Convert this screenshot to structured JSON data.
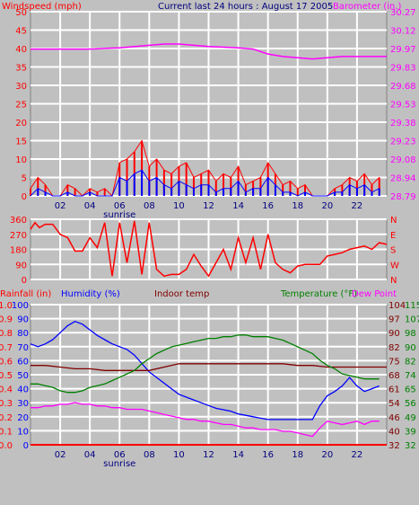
{
  "chart_data": [
    {
      "type": "line",
      "panel": "wind_baro",
      "title": "Current last 24 hours : August 17 2005",
      "left_axis_label": "Windspeed (mph)",
      "right_axis_label": "Barometer (in.)",
      "left_ticks": [
        0,
        5,
        10,
        15,
        20,
        25,
        30,
        35,
        40,
        45,
        50
      ],
      "ylim_left": [
        0,
        50
      ],
      "right_ticks": [
        "28.79",
        "28.94",
        "29.08",
        "29.23",
        "29.38",
        "29.53",
        "29.68",
        "29.83",
        "29.97",
        "30.12",
        "30.27"
      ],
      "ylim_right": [
        28.79,
        30.27
      ],
      "x_ticks": [
        "02",
        "04",
        "06",
        "08",
        "10",
        "12",
        "14",
        "16",
        "18",
        "20",
        "22"
      ],
      "x_annotation": "sunrise",
      "xlim": [
        0,
        24
      ],
      "colors": {
        "wind_gust": "#ff0000",
        "wind_avg": "#0000ff",
        "barometer": "#ff00ff",
        "left_axis": "#ff0000",
        "right_axis": "#ff00ff",
        "title": "#000080"
      },
      "series": [
        {
          "key": "barometer",
          "axis": "right",
          "x": [
            0,
            2,
            4,
            6,
            8,
            9,
            10,
            12,
            14,
            15,
            16,
            17,
            18,
            19,
            20,
            21,
            22,
            24
          ],
          "y": [
            29.97,
            29.97,
            29.97,
            29.98,
            30.0,
            30.01,
            30.01,
            29.99,
            29.98,
            29.97,
            29.93,
            29.91,
            29.9,
            29.89,
            29.9,
            29.91,
            29.91,
            29.91
          ]
        },
        {
          "key": "wind_gust",
          "axis": "left",
          "x": [
            0,
            0.5,
            1,
            1.5,
            2,
            2.5,
            3,
            3.5,
            4,
            4.5,
            5,
            5.5,
            6,
            6.5,
            7,
            7.5,
            8,
            8.5,
            9,
            9.5,
            10,
            10.5,
            11,
            11.5,
            12,
            12.5,
            13,
            13.5,
            14,
            14.5,
            15,
            15.5,
            16,
            16.5,
            17,
            17.5,
            18,
            18.5,
            19,
            19.5,
            20,
            20.5,
            21,
            21.5,
            22,
            22.5,
            23,
            23.5
          ],
          "y": [
            2,
            5,
            3,
            0,
            0,
            3,
            2,
            0,
            2,
            1,
            2,
            0,
            9,
            10,
            12,
            15,
            8,
            10,
            7,
            6,
            8,
            9,
            5,
            6,
            7,
            4,
            6,
            5,
            8,
            3,
            4,
            5,
            9,
            6,
            3,
            4,
            2,
            3,
            0,
            0,
            0,
            2,
            3,
            5,
            4,
            6,
            3,
            5
          ]
        },
        {
          "key": "wind_avg",
          "axis": "left",
          "x": [
            0,
            0.5,
            1,
            1.5,
            2,
            2.5,
            3,
            3.5,
            4,
            4.5,
            5,
            5.5,
            6,
            6.5,
            7,
            7.5,
            8,
            8.5,
            9,
            9.5,
            10,
            10.5,
            11,
            11.5,
            12,
            12.5,
            13,
            13.5,
            14,
            14.5,
            15,
            15.5,
            16,
            16.5,
            17,
            17.5,
            18,
            18.5,
            19,
            19.5,
            20,
            20.5,
            21,
            21.5,
            22,
            22.5,
            23,
            23.5
          ],
          "y": [
            0,
            2,
            1,
            0,
            0,
            1,
            0,
            0,
            1,
            0,
            0,
            0,
            5,
            4,
            6,
            7,
            4,
            5,
            3,
            2,
            4,
            3,
            2,
            3,
            3,
            1,
            2,
            2,
            4,
            1,
            2,
            2,
            5,
            3,
            1,
            1,
            0,
            1,
            0,
            0,
            0,
            1,
            1,
            3,
            2,
            3,
            1,
            2
          ]
        }
      ]
    },
    {
      "type": "line",
      "panel": "wind_direction",
      "left_ticks": [
        0,
        90,
        180,
        270,
        360
      ],
      "ylim": [
        0,
        360
      ],
      "right_ticks": [
        "N",
        "W",
        "S",
        "E",
        "N"
      ],
      "colors": {
        "direction": "#ff0000",
        "left_axis": "#ff0000",
        "right_axis": "#ff0000"
      },
      "series": [
        {
          "key": "direction",
          "x": [
            0,
            0.3,
            0.6,
            1,
            1.5,
            2,
            2.5,
            3,
            3.5,
            4,
            4.5,
            5,
            5.5,
            6,
            6.5,
            7,
            7.5,
            8,
            8.5,
            9,
            9.5,
            10,
            10.5,
            11,
            11.5,
            12,
            12.5,
            13,
            13.5,
            14,
            14.5,
            15,
            15.5,
            16,
            16.5,
            17,
            17.5,
            18,
            18.5,
            19,
            19.5,
            20,
            20.5,
            21,
            21.5,
            22,
            22.5,
            23,
            23.5,
            24
          ],
          "y": [
            300,
            340,
            310,
            330,
            330,
            270,
            250,
            170,
            170,
            250,
            190,
            340,
            20,
            340,
            100,
            350,
            30,
            340,
            60,
            20,
            30,
            30,
            60,
            150,
            80,
            20,
            100,
            180,
            60,
            250,
            100,
            250,
            60,
            270,
            100,
            60,
            40,
            80,
            90,
            90,
            90,
            140,
            150,
            160,
            180,
            190,
            200,
            180,
            220,
            210
          ]
        }
      ]
    },
    {
      "type": "line",
      "panel": "rain_humidity_temp",
      "labels": {
        "rainfall": "Rainfall (in)",
        "humidity": "Humidity (%)",
        "indoor": "Indoor temp",
        "temperature": "Temperature (°F)",
        "dewpoint": "Dew Point"
      },
      "humidity_ticks": [
        0,
        10,
        20,
        30,
        40,
        50,
        60,
        70,
        80,
        90,
        100
      ],
      "rain_ticks": [
        "0.0",
        "0.1",
        "0.2",
        "0.3",
        "0.4",
        "0.5",
        "0.6",
        "0.7",
        "0.8",
        "0.9",
        "1.0"
      ],
      "temp_ticks_left": [
        32,
        40,
        46,
        54,
        61,
        68,
        75,
        82,
        90,
        97,
        104
      ],
      "temp_ticks_right": [
        32,
        39,
        49,
        56,
        65,
        74,
        82,
        90,
        98,
        107,
        115
      ],
      "ylim_humidity": [
        0,
        100
      ],
      "ylim_temp": [
        32,
        115
      ],
      "colors": {
        "rainfall": "#ff0000",
        "humidity": "#0000ff",
        "indoor": "#800000",
        "temperature": "#008000",
        "dewpoint": "#ff00ff",
        "rain_axis": "#ff0000",
        "hum_axis": "#0000ff",
        "temp_left_axis": "#800000",
        "temp_right_axis": "#008000"
      },
      "series": [
        {
          "key": "humidity",
          "x": [
            0,
            0.5,
            1,
            1.5,
            2,
            2.5,
            3,
            3.5,
            4,
            4.5,
            5,
            5.5,
            6,
            6.5,
            7,
            7.5,
            8,
            8.5,
            9,
            9.5,
            10,
            10.5,
            11,
            11.5,
            12,
            12.5,
            13,
            13.5,
            14,
            14.5,
            15,
            15.5,
            16,
            16.5,
            17,
            17.5,
            18,
            18.5,
            19,
            19.5,
            20,
            20.5,
            21,
            21.5,
            22,
            22.5,
            23,
            23.5
          ],
          "y": [
            72,
            70,
            72,
            75,
            80,
            85,
            88,
            86,
            82,
            78,
            75,
            72,
            70,
            68,
            64,
            58,
            52,
            48,
            44,
            40,
            36,
            34,
            32,
            30,
            28,
            26,
            25,
            24,
            22,
            21,
            20,
            19,
            18,
            18,
            18,
            18,
            18,
            18,
            18,
            28,
            35,
            38,
            42,
            48,
            42,
            38,
            40,
            42
          ]
        },
        {
          "key": "indoor",
          "x": [
            0,
            1,
            2,
            3,
            4,
            5,
            6,
            7,
            8,
            9,
            10,
            11,
            12,
            13,
            14,
            15,
            16,
            17,
            18,
            19,
            20,
            21,
            22,
            23,
            24
          ],
          "y": [
            79,
            79,
            78,
            77,
            77,
            76,
            76,
            76,
            76,
            78,
            80,
            80,
            80,
            80,
            80,
            80,
            80,
            80,
            79,
            79,
            78,
            78,
            78,
            78,
            78
          ]
        },
        {
          "key": "temperature",
          "x": [
            0,
            0.5,
            1,
            1.5,
            2,
            2.5,
            3,
            3.5,
            4,
            4.5,
            5,
            5.5,
            6,
            6.5,
            7,
            7.5,
            8,
            8.5,
            9,
            9.5,
            10,
            10.5,
            11,
            11.5,
            12,
            12.5,
            13,
            13.5,
            14,
            14.5,
            15,
            15.5,
            16,
            16.5,
            17,
            17.5,
            18,
            18.5,
            19,
            19.5,
            20,
            20.5,
            21,
            21.5,
            22,
            22.5,
            23,
            23.5
          ],
          "y": [
            68,
            68,
            67,
            66,
            64,
            63,
            63,
            64,
            66,
            67,
            68,
            70,
            72,
            74,
            76,
            80,
            83,
            86,
            88,
            90,
            91,
            92,
            93,
            94,
            95,
            95,
            96,
            96,
            97,
            97,
            96,
            96,
            96,
            95,
            94,
            92,
            90,
            88,
            86,
            82,
            79,
            77,
            74,
            73,
            72,
            71,
            71,
            71
          ]
        },
        {
          "key": "dewpoint",
          "x": [
            0,
            0.5,
            1,
            1.5,
            2,
            2.5,
            3,
            3.5,
            4,
            4.5,
            5,
            5.5,
            6,
            6.5,
            7,
            7.5,
            8,
            8.5,
            9,
            9.5,
            10,
            10.5,
            11,
            11.5,
            12,
            12.5,
            13,
            13.5,
            14,
            14.5,
            15,
            15.5,
            16,
            16.5,
            17,
            17.5,
            18,
            18.5,
            19,
            19.5,
            20,
            20.5,
            21,
            21.5,
            22,
            22.5,
            23,
            23.5
          ],
          "y": [
            54,
            54,
            55,
            55,
            56,
            56,
            57,
            56,
            56,
            55,
            55,
            54,
            54,
            53,
            53,
            53,
            52,
            51,
            50,
            49,
            48,
            47,
            47,
            46,
            46,
            45,
            44,
            44,
            43,
            42,
            42,
            41,
            41,
            41,
            40,
            40,
            39,
            38,
            37,
            42,
            46,
            45,
            44,
            45,
            46,
            44,
            46,
            46
          ]
        }
      ],
      "rainfall_values": [
        0,
        0,
        0,
        0,
        0,
        0,
        0,
        0,
        0,
        0,
        0,
        0,
        0,
        0,
        0,
        0,
        0,
        0,
        0,
        0,
        0,
        0,
        0,
        0,
        0
      ]
    }
  ]
}
